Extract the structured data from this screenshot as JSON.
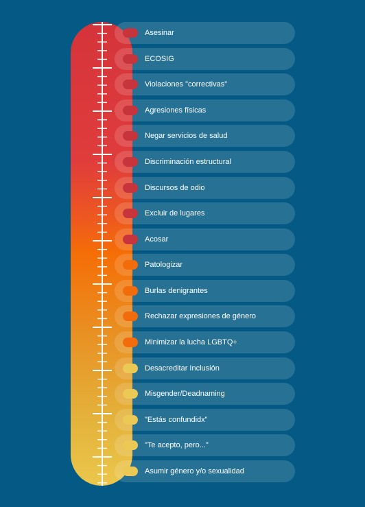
{
  "items": [
    {
      "label": "Asesinar",
      "color": "#c8343c"
    },
    {
      "label": "ECOSIG",
      "color": "#c8343c"
    },
    {
      "label": "Violaciones \"correctivas\"",
      "color": "#c8343c"
    },
    {
      "label": "Agresiones físicas",
      "color": "#c8343c"
    },
    {
      "label": "Negar servicios de salud",
      "color": "#c8343c"
    },
    {
      "label": "Discriminación estructural",
      "color": "#c8343c"
    },
    {
      "label": "Discursos de odio",
      "color": "#c8343c"
    },
    {
      "label": "Excluir de lugares",
      "color": "#c8343c"
    },
    {
      "label": "Acosar",
      "color": "#c8343c"
    },
    {
      "label": "Patologizar",
      "color": "#f36c0c"
    },
    {
      "label": "Burlas denigrantes",
      "color": "#f36c0c"
    },
    {
      "label": "Rechazar expresiones de género",
      "color": "#f36c0c"
    },
    {
      "label": "Minimizar la lucha LGBTQ+",
      "color": "#f36c0c"
    },
    {
      "label": "Desacreditar Inclusión",
      "color": "#ecc855"
    },
    {
      "label": "Misgender/Deadnaming",
      "color": "#ecc855"
    },
    {
      "label": "\"Estás confundidx\"",
      "color": "#ecc855"
    },
    {
      "label": "\"Te acepto, pero...\"",
      "color": "#ecc855"
    },
    {
      "label": "Asumir género y/o sexualidad",
      "color": "#ecc855"
    }
  ],
  "colors": {
    "background": "#045a84",
    "red": "#c8343c",
    "orange": "#f36c0c",
    "yellow": "#ecc855"
  }
}
